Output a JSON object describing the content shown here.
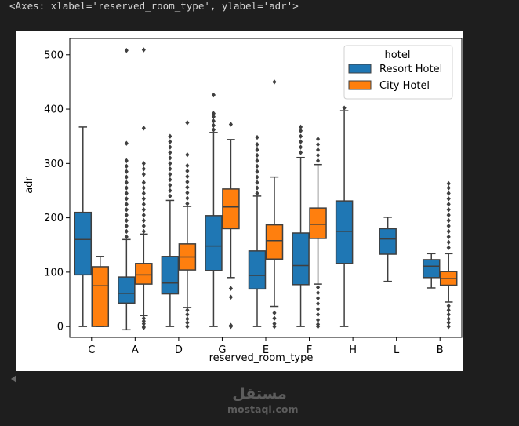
{
  "output": {
    "repr_text": "<Axes: xlabel='reserved_room_type', ylabel='adr'>"
  },
  "watermark": {
    "arabic": "مستقل",
    "latin": "mostaql.com"
  },
  "chart_data": {
    "type": "box",
    "xlabel": "reserved_room_type",
    "ylabel": "adr",
    "categories": [
      "C",
      "A",
      "D",
      "G",
      "E",
      "F",
      "H",
      "L",
      "B"
    ],
    "ylim": [
      -20,
      530
    ],
    "yticks": [
      0,
      100,
      200,
      300,
      400,
      500
    ],
    "grid": false,
    "legend": {
      "title": "hotel",
      "placement": "top-right"
    },
    "series": [
      {
        "name": "Resort Hotel",
        "color": "#1f77b4",
        "boxes": [
          {
            "category": "C",
            "whisker_low": 0,
            "q1": 95,
            "median": 160,
            "q3": 210,
            "whisker_high": 367,
            "outliers_high": [],
            "outliers_low": []
          },
          {
            "category": "A",
            "whisker_low": -6,
            "q1": 43,
            "median": 61,
            "q3": 91,
            "whisker_high": 160,
            "outliers_high": [
              165,
              175,
              185,
              195,
              205,
              215,
              225,
              235,
              245,
              255,
              265,
              275,
              285,
              295,
              305,
              337,
              508
            ],
            "outliers_low": []
          },
          {
            "category": "D",
            "whisker_low": 0,
            "q1": 60,
            "median": 80,
            "q3": 129,
            "whisker_high": 232,
            "outliers_high": [
              240,
              250,
              260,
              270,
              280,
              290,
              300,
              310,
              320,
              330,
              340,
              350
            ],
            "outliers_low": []
          },
          {
            "category": "G",
            "whisker_low": 0,
            "q1": 103,
            "median": 148,
            "q3": 204,
            "whisker_high": 357,
            "outliers_high": [
              362,
              370,
              378,
              386,
              392,
              426
            ],
            "outliers_low": []
          },
          {
            "category": "E",
            "whisker_low": 0,
            "q1": 69,
            "median": 94,
            "q3": 139,
            "whisker_high": 240,
            "outliers_high": [
              245,
              255,
              265,
              275,
              285,
              295,
              305,
              315,
              325,
              335,
              348
            ],
            "outliers_low": []
          },
          {
            "category": "F",
            "whisker_low": 0,
            "q1": 77,
            "median": 112,
            "q3": 172,
            "whisker_high": 311,
            "outliers_high": [
              320,
              330,
              340,
              350,
              360,
              367
            ],
            "outliers_low": []
          },
          {
            "category": "H",
            "whisker_low": 0,
            "q1": 116,
            "median": 175,
            "q3": 231,
            "whisker_high": 397,
            "outliers_high": [
              402
            ],
            "outliers_low": []
          },
          {
            "category": "L",
            "whisker_low": 83,
            "q1": 133,
            "median": 161,
            "q3": 180,
            "whisker_high": 201,
            "outliers_high": [],
            "outliers_low": []
          },
          {
            "category": "B",
            "whisker_low": 71,
            "q1": 90,
            "median": 111,
            "q3": 123,
            "whisker_high": 134,
            "outliers_high": [],
            "outliers_low": []
          }
        ]
      },
      {
        "name": "City Hotel",
        "color": "#ff7f0e",
        "boxes": [
          {
            "category": "C",
            "whisker_low": 0,
            "q1": 0,
            "median": 75,
            "q3": 110,
            "whisker_high": 129,
            "outliers_high": [],
            "outliers_low": []
          },
          {
            "category": "A",
            "whisker_low": 20,
            "q1": 78,
            "median": 95,
            "q3": 116,
            "whisker_high": 170,
            "outliers_high": [
              175,
              185,
              195,
              205,
              215,
              225,
              235,
              245,
              255,
              265,
              280,
              290,
              300,
              365,
              509
            ],
            "outliers_low": [
              15,
              10,
              5,
              0,
              -2
            ]
          },
          {
            "category": "D",
            "whisker_low": 35,
            "q1": 104,
            "median": 128,
            "q3": 152,
            "whisker_high": 221,
            "outliers_high": [
              226,
              236,
              246,
              256,
              266,
              276,
              286,
              296,
              316,
              375
            ],
            "outliers_low": [
              30,
              22,
              14,
              7,
              0
            ]
          },
          {
            "category": "G",
            "whisker_low": 90,
            "q1": 180,
            "median": 220,
            "q3": 253,
            "whisker_high": 344,
            "outliers_high": [
              372
            ],
            "outliers_low": [
              70,
              54,
              2,
              0
            ]
          },
          {
            "category": "E",
            "whisker_low": 37,
            "q1": 124,
            "median": 158,
            "q3": 187,
            "whisker_high": 275,
            "outliers_high": [
              450
            ],
            "outliers_low": [
              25,
              15,
              5,
              0
            ]
          },
          {
            "category": "F",
            "whisker_low": 78,
            "q1": 162,
            "median": 188,
            "q3": 218,
            "whisker_high": 298,
            "outliers_high": [
              305,
              315,
              325,
              335,
              345
            ],
            "outliers_low": [
              72,
              62,
              52,
              42,
              32,
              22,
              12,
              4,
              0
            ]
          },
          {
            "category": "B",
            "whisker_low": 45,
            "q1": 76,
            "median": 88,
            "q3": 101,
            "whisker_high": 134,
            "outliers_high": [
              145,
              155,
              165,
              175,
              185,
              195,
              205,
              215,
              225,
              235,
              245,
              255,
              263
            ],
            "outliers_low": [
              38,
              30,
              22,
              14,
              7,
              0
            ]
          }
        ]
      }
    ]
  }
}
